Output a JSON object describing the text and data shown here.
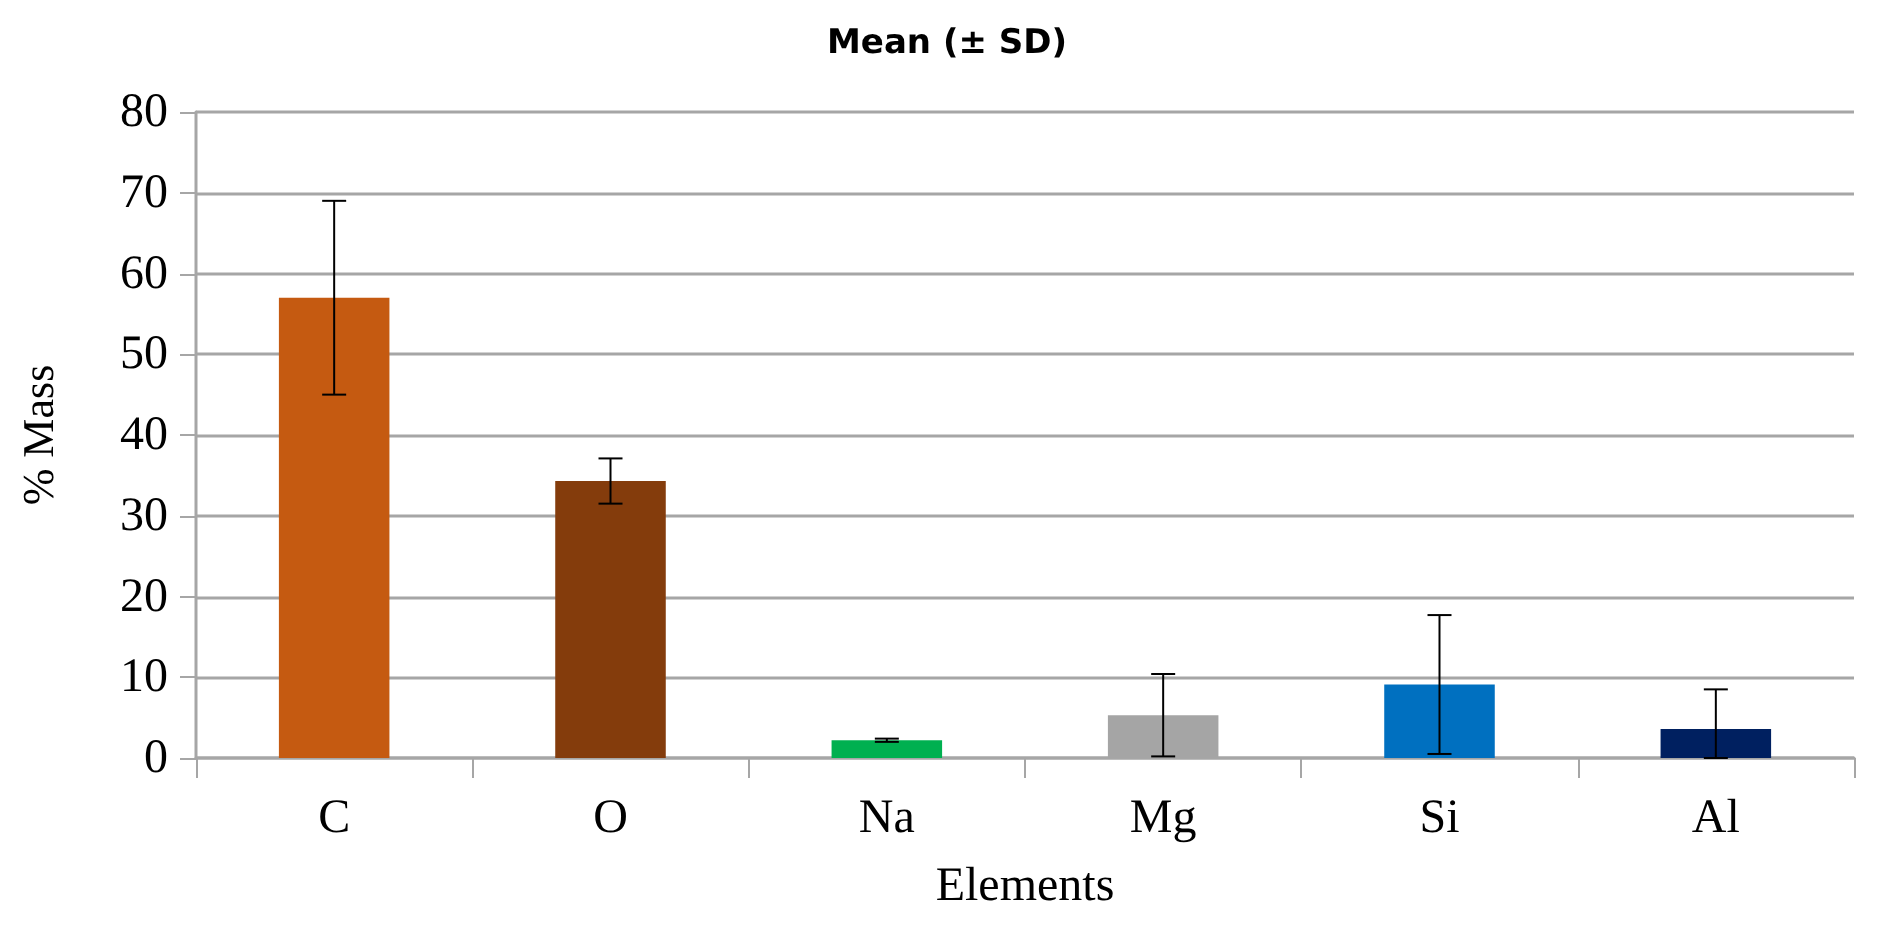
{
  "chart_data": {
    "type": "bar",
    "title": "Mean (± SD)",
    "xlabel": "Elements",
    "ylabel": "% Mass",
    "categories": [
      "C",
      "O",
      "Na",
      "Mg",
      "Si",
      "Al"
    ],
    "values": [
      57,
      34.3,
      2.2,
      5.3,
      9.1,
      3.6
    ],
    "errors": [
      12,
      2.8,
      0.2,
      5.1,
      8.6,
      [
        0,
        8.5
      ]
    ],
    "colors": [
      "#c55a11",
      "#843c0c",
      "#00b050",
      "#a5a5a5",
      "#0070c0",
      "#002060"
    ],
    "ylim": [
      0,
      80
    ],
    "yticks": [
      0,
      10,
      20,
      30,
      40,
      50,
      60,
      70,
      80
    ],
    "grid": "y"
  }
}
